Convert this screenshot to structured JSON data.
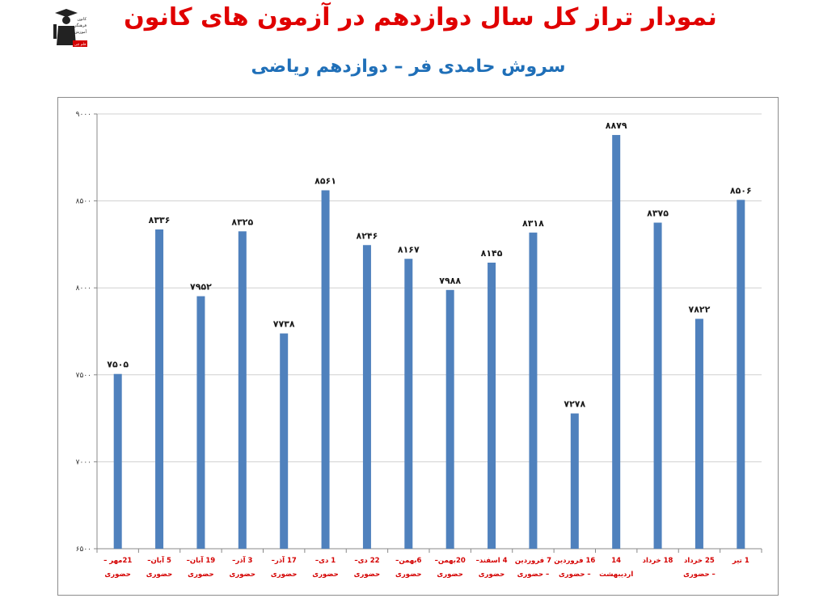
{
  "header": {
    "title": "نمودار تراز کل سال دوازدهم در آزمون های کانون",
    "subtitle": "سروش حامدی فر – دوازدهم ریاضی",
    "logo_lines": [
      "کانون",
      "فرهنگی",
      "آموزش",
      "قلم چی"
    ]
  },
  "colors": {
    "title": "#e00000",
    "subtitle": "#1f6fb8",
    "bar": "#4f81bd",
    "category_label": "#d40000",
    "grid": "#d0d0d0"
  },
  "chart_data": {
    "type": "bar",
    "title": "نمودار تراز کل سال دوازدهم در آزمون های کانون",
    "subtitle": "سروش حامدی فر – دوازدهم ریاضی",
    "xlabel": "",
    "ylabel": "",
    "ylim": [
      6500,
      9000
    ],
    "y_ticks": [
      {
        "value": 9000,
        "label": "۹۰۰۰"
      },
      {
        "value": 8500,
        "label": "۸۵۰۰"
      },
      {
        "value": 8000,
        "label": "۸۰۰۰"
      },
      {
        "value": 7500,
        "label": "۷۵۰۰"
      },
      {
        "value": 7000,
        "label": "۷۰۰۰"
      },
      {
        "value": 6500,
        "label": "۶۵۰۰"
      }
    ],
    "grid": true,
    "legend": "none",
    "categories": [
      [
        "21مهر –",
        "حضوری"
      ],
      [
        "5 آبان–",
        "حضوری"
      ],
      [
        "19 آبان–",
        "حضوری"
      ],
      [
        "3 آذر–",
        "حضوری"
      ],
      [
        "17 آذر–",
        "حضوری"
      ],
      [
        "1 دی–",
        "حضوری"
      ],
      [
        "22 دی–",
        "حضوری"
      ],
      [
        "6بهمن–",
        "حضوری"
      ],
      [
        "20بهمن–",
        "حضوری"
      ],
      [
        "4 اسفند–",
        "حضوری"
      ],
      [
        "7 فروردین",
        "– حضوری"
      ],
      [
        "16 فروردین",
        "– حضوری"
      ],
      [
        "14",
        "اردیبهشت"
      ],
      [
        "18 خرداد"
      ],
      [
        "25 خرداد",
        "– حضوری"
      ],
      [
        "1 تیر"
      ]
    ],
    "values": [
      7505,
      8336,
      7952,
      8325,
      7738,
      8561,
      8246,
      8167,
      7988,
      8145,
      8318,
      7278,
      8879,
      8375,
      7822,
      8506
    ],
    "value_labels": [
      "۷۵۰۵",
      "۸۳۳۶",
      "۷۹۵۲",
      "۸۳۲۵",
      "۷۷۳۸",
      "۸۵۶۱",
      "۸۲۴۶",
      "۸۱۶۷",
      "۷۹۸۸",
      "۸۱۴۵",
      "۸۳۱۸",
      "۷۲۷۸",
      "۸۸۷۹",
      "۸۳۷۵",
      "۷۸۲۲",
      "۸۵۰۶"
    ]
  }
}
